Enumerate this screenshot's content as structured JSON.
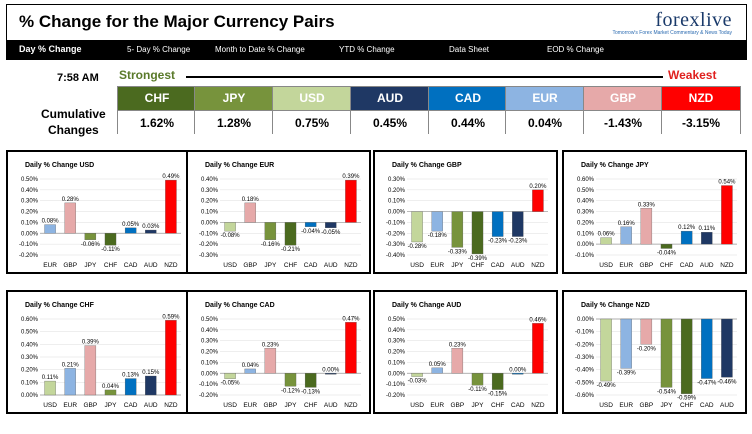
{
  "header": {
    "title": "% Change for the Major Currency Pairs",
    "logo": "forexlive",
    "logo_sub": "Tomorrow's Forex Market Commentary & News Today"
  },
  "nav": [
    "Day % Change",
    "5- Day % Change",
    "Month to Date % Change",
    "YTD % Change",
    "Data Sheet",
    "EOD % Change"
  ],
  "time": "7:58 AM",
  "strongest_label": "Strongest",
  "weakest_label": "Weakest",
  "cumulative_label_1": "Cumulative",
  "cumulative_label_2": "Changes",
  "colors": {
    "CHF": "#4b6a1f",
    "JPY": "#77933c",
    "USD": "#c3d69b",
    "AUD": "#1f3864",
    "CAD": "#0070c0",
    "EUR": "#8db4e2",
    "GBP": "#e6a9a9",
    "NZD": "#ff0000"
  },
  "ranking": [
    {
      "code": "CHF",
      "value": "1.62%"
    },
    {
      "code": "JPY",
      "value": "1.28%"
    },
    {
      "code": "USD",
      "value": "0.75%"
    },
    {
      "code": "AUD",
      "value": "0.45%"
    },
    {
      "code": "CAD",
      "value": "0.44%"
    },
    {
      "code": "EUR",
      "value": "0.04%"
    },
    {
      "code": "GBP",
      "value": "-1.43%"
    },
    {
      "code": "NZD",
      "value": "-3.15%"
    }
  ],
  "chart_data": [
    {
      "type": "bar",
      "title": "Daily % Change USD",
      "base": "USD",
      "categories": [
        "EUR",
        "GBP",
        "JPY",
        "CHF",
        "CAD",
        "AUD",
        "NZD"
      ],
      "values": [
        0.08,
        0.28,
        -0.06,
        -0.11,
        0.05,
        0.03,
        0.49
      ],
      "labels": [
        "0.08%",
        "0.28%",
        "-0.06%",
        "-0.11%",
        "0.05%",
        "0.03%",
        "0.49%"
      ],
      "ylim": [
        -0.2,
        0.5
      ],
      "yticks": [
        "0.50%",
        "0.40%",
        "0.30%",
        "0.20%",
        "0.10%",
        "0.00%",
        "-0.10%",
        "-0.20%"
      ]
    },
    {
      "type": "bar",
      "title": "Daily % Change EUR",
      "base": "EUR",
      "categories": [
        "USD",
        "GBP",
        "JPY",
        "CHF",
        "CAD",
        "AUD",
        "NZD"
      ],
      "values": [
        -0.08,
        0.18,
        -0.16,
        -0.21,
        -0.04,
        -0.05,
        0.39
      ],
      "labels": [
        "-0.08%",
        "0.18%",
        "-0.16%",
        "-0.21%",
        "-0.04%",
        "-0.05%",
        "0.39%"
      ],
      "ylim": [
        -0.3,
        0.4
      ],
      "yticks": [
        "0.40%",
        "0.30%",
        "0.20%",
        "0.10%",
        "0.00%",
        "-0.10%",
        "-0.20%",
        "-0.30%"
      ]
    },
    {
      "type": "bar",
      "title": "Daily % Change GBP",
      "base": "GBP",
      "categories": [
        "USD",
        "EUR",
        "JPY",
        "CHF",
        "CAD",
        "AUD",
        "NZD"
      ],
      "values": [
        -0.28,
        -0.18,
        -0.33,
        -0.39,
        -0.23,
        -0.23,
        0.2
      ],
      "labels": [
        "-0.28%",
        "-0.18%",
        "-0.33%",
        "-0.39%",
        "-0.23%",
        "-0.23%",
        "0.20%"
      ],
      "ylim": [
        -0.4,
        0.3
      ],
      "yticks": [
        "0.30%",
        "0.20%",
        "0.10%",
        "0.00%",
        "-0.10%",
        "-0.20%",
        "-0.30%",
        "-0.40%"
      ]
    },
    {
      "type": "bar",
      "title": "Daily % Change JPY",
      "base": "JPY",
      "categories": [
        "USD",
        "EUR",
        "GBP",
        "CHF",
        "CAD",
        "AUD",
        "NZD"
      ],
      "values": [
        0.06,
        0.16,
        0.33,
        -0.04,
        0.12,
        0.11,
        0.54
      ],
      "labels": [
        "0.06%",
        "0.16%",
        "0.33%",
        "-0.04%",
        "0.12%",
        "0.11%",
        "0.54%"
      ],
      "ylim": [
        -0.1,
        0.6
      ],
      "yticks": [
        "0.60%",
        "0.50%",
        "0.40%",
        "0.30%",
        "0.20%",
        "0.10%",
        "0.00%",
        "-0.10%"
      ]
    },
    {
      "type": "bar",
      "title": "Daily % Change CHF",
      "base": "CHF",
      "categories": [
        "USD",
        "EUR",
        "GBP",
        "JPY",
        "CAD",
        "AUD",
        "NZD"
      ],
      "values": [
        0.11,
        0.21,
        0.39,
        0.04,
        0.13,
        0.15,
        0.59
      ],
      "labels": [
        "0.11%",
        "0.21%",
        "0.39%",
        "0.04%",
        "0.13%",
        "0.15%",
        "0.59%"
      ],
      "ylim": [
        0,
        0.6
      ],
      "yticks": [
        "0.60%",
        "0.50%",
        "0.40%",
        "0.30%",
        "0.20%",
        "0.10%",
        "0.00%"
      ]
    },
    {
      "type": "bar",
      "title": "Daily % Change CAD",
      "base": "CAD",
      "categories": [
        "USD",
        "EUR",
        "GBP",
        "JPY",
        "CHF",
        "AUD",
        "NZD"
      ],
      "values": [
        -0.05,
        0.04,
        0.23,
        -0.12,
        -0.13,
        0.0,
        0.47
      ],
      "labels": [
        "-0.05%",
        "0.04%",
        "0.23%",
        "-0.12%",
        "-0.13%",
        "0.00%",
        "0.47%"
      ],
      "ylim": [
        -0.2,
        0.5
      ],
      "yticks": [
        "0.50%",
        "0.40%",
        "0.30%",
        "0.20%",
        "0.10%",
        "0.00%",
        "-0.10%",
        "-0.20%"
      ]
    },
    {
      "type": "bar",
      "title": "Daily % Change AUD",
      "base": "AUD",
      "categories": [
        "USD",
        "EUR",
        "GBP",
        "JPY",
        "CHF",
        "CAD",
        "NZD"
      ],
      "values": [
        -0.03,
        0.05,
        0.23,
        -0.11,
        -0.15,
        0.0,
        0.46
      ],
      "labels": [
        "-0.03%",
        "0.05%",
        "0.23%",
        "-0.11%",
        "-0.15%",
        "0.00%",
        "0.46%"
      ],
      "ylim": [
        -0.2,
        0.5
      ],
      "yticks": [
        "0.50%",
        "0.40%",
        "0.30%",
        "0.20%",
        "0.10%",
        "0.00%",
        "-0.10%",
        "-0.20%"
      ]
    },
    {
      "type": "bar",
      "title": "Daily % Change NZD",
      "base": "NZD",
      "categories": [
        "USD",
        "EUR",
        "GBP",
        "JPY",
        "CHF",
        "CAD",
        "AUD"
      ],
      "values": [
        -0.49,
        -0.39,
        -0.2,
        -0.54,
        -0.59,
        -0.47,
        -0.46
      ],
      "labels": [
        "-0.49%",
        "-0.39%",
        "-0.20%",
        "-0.54%",
        "-0.59%",
        "-0.47%",
        "-0.46%"
      ],
      "ylim": [
        -0.6,
        0.0
      ],
      "yticks": [
        "0.00%",
        "-0.10%",
        "-0.20%",
        "-0.30%",
        "-0.40%",
        "-0.50%",
        "-0.60%"
      ]
    }
  ]
}
